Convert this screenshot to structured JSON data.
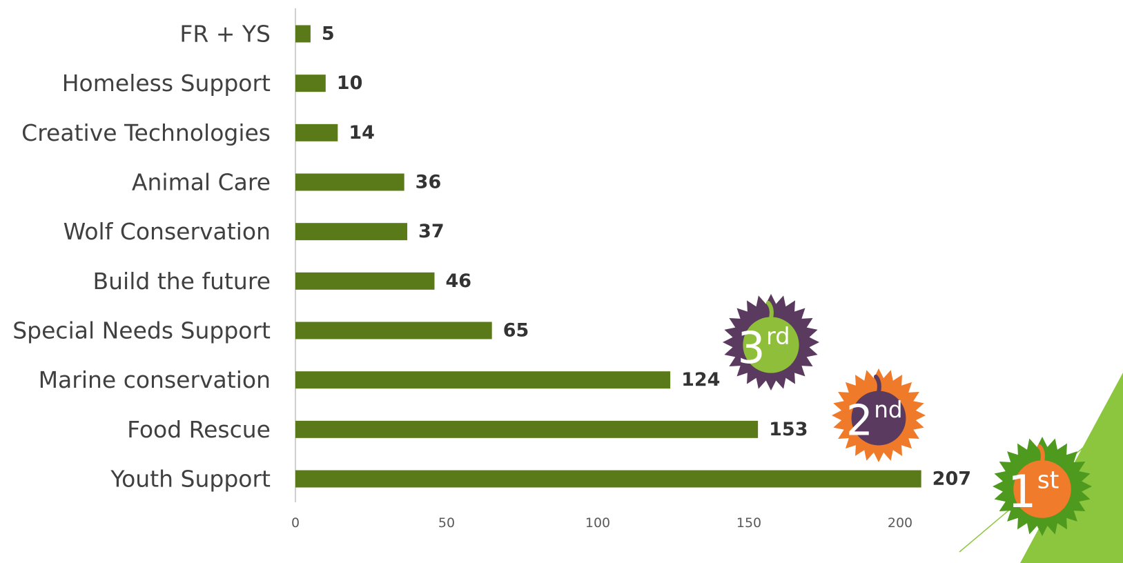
{
  "chart_data": {
    "type": "bar",
    "orientation": "horizontal",
    "categories": [
      "FR + YS",
      "Homeless Support",
      "Creative Technologies",
      "Animal Care",
      "Wolf Conservation",
      "Build the future",
      "Special Needs Support",
      "Marine conservation",
      "Food Rescue",
      "Youth Support"
    ],
    "values": [
      5,
      10,
      14,
      36,
      37,
      46,
      65,
      124,
      153,
      207
    ],
    "xlim": [
      0,
      200
    ],
    "xticks": [
      "0",
      "50",
      "100",
      "150",
      "200"
    ],
    "grid": false,
    "legend": "none",
    "bar_color": "#5a7a1a",
    "title": "",
    "xlabel": "",
    "ylabel": ""
  },
  "badges": [
    {
      "main": "3",
      "suffix": "rd",
      "category": "Marine conservation",
      "star_color": "#5a3a5e",
      "body_color": "#8fbf3a"
    },
    {
      "main": "2",
      "suffix": "nd",
      "category": "Food Rescue",
      "star_color": "#ee7a2a",
      "body_color": "#5a3a5e"
    },
    {
      "main": "1",
      "suffix": "st",
      "category": "Youth Support",
      "star_color": "#4e9a1e",
      "body_color": "#f07b2a"
    }
  ],
  "decor": {
    "accent_color": "#8cc63f"
  }
}
